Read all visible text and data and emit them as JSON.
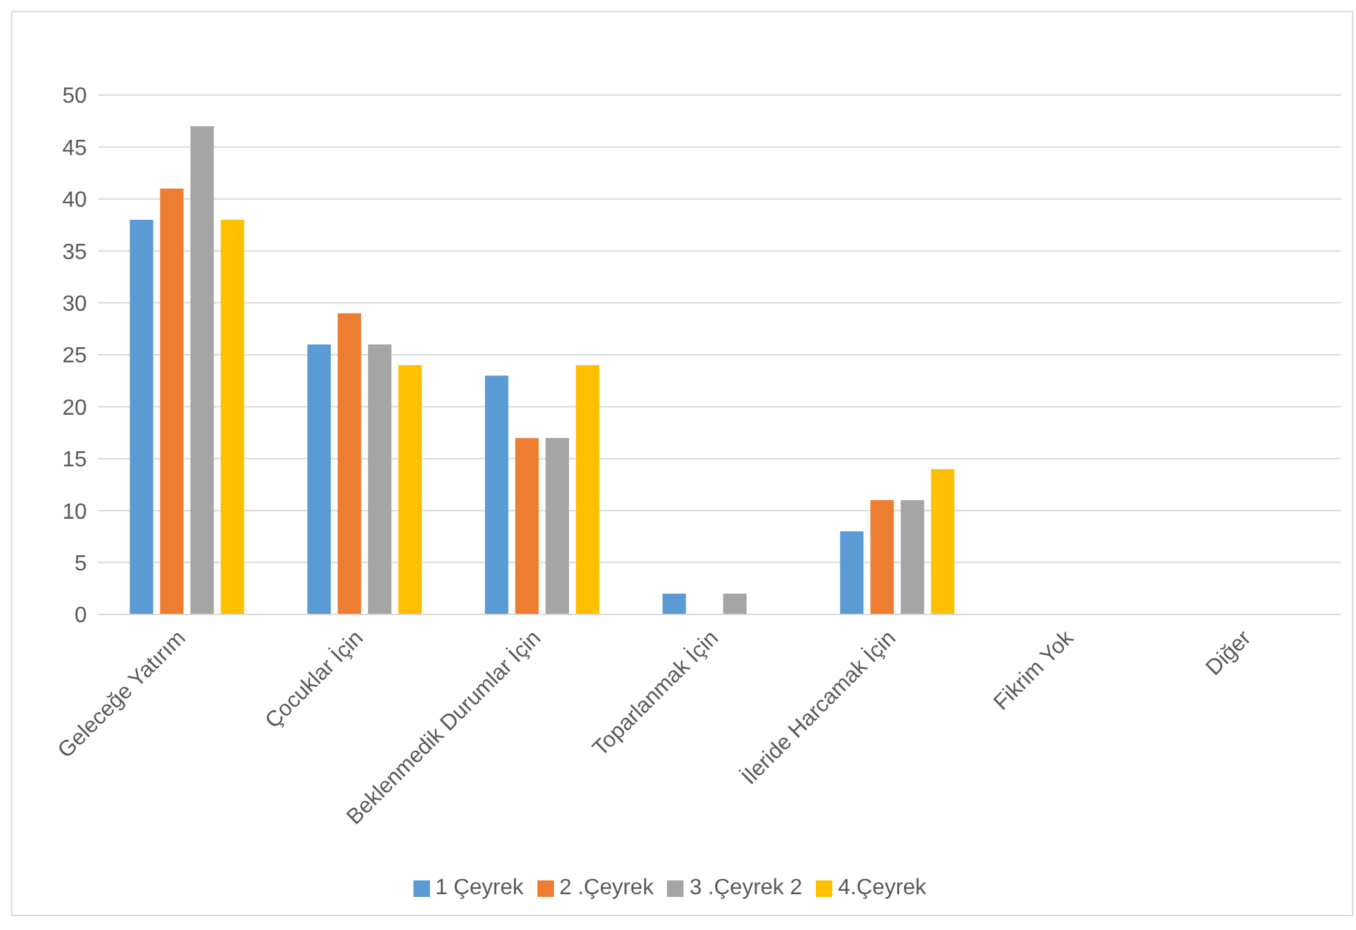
{
  "chart_data": {
    "type": "bar",
    "categories": [
      "Geleceğe Yatırım",
      "Çocuklar İçin",
      "Beklenmedik Durumlar İçin",
      "Toparlanmak İçin",
      "İleride Harcamak İçin",
      "Fikrim Yok",
      "Diğer"
    ],
    "series": [
      {
        "name": "1 Çeyrek",
        "color": "#5b9bd5",
        "values": [
          38,
          26,
          23,
          2,
          8,
          0,
          0
        ]
      },
      {
        "name": "2 .Çeyrek",
        "color": "#ed7d31",
        "values": [
          41,
          29,
          17,
          0,
          11,
          0,
          0
        ]
      },
      {
        "name": "3 .Çeyrek 2",
        "color": "#a5a5a5",
        "values": [
          47,
          26,
          17,
          2,
          11,
          0,
          0
        ]
      },
      {
        "name": "4.Çeyrek",
        "color": "#ffc000",
        "values": [
          38,
          24,
          24,
          0,
          14,
          0,
          0
        ]
      }
    ],
    "ylim": [
      0,
      50
    ],
    "yticks": [
      0,
      5,
      10,
      15,
      20,
      25,
      30,
      35,
      40,
      45,
      50
    ],
    "grid": "y",
    "legend": "bottom"
  }
}
